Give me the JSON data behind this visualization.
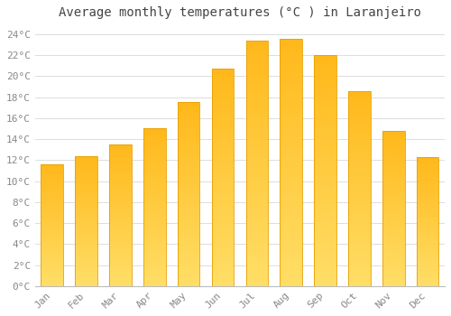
{
  "title": "Average monthly temperatures (°C ) in Laranjeiro",
  "months": [
    "Jan",
    "Feb",
    "Mar",
    "Apr",
    "May",
    "Jun",
    "Jul",
    "Aug",
    "Sep",
    "Oct",
    "Nov",
    "Dec"
  ],
  "values": [
    11.6,
    12.4,
    13.5,
    15.0,
    17.5,
    20.7,
    23.4,
    23.6,
    22.0,
    18.6,
    14.8,
    12.3
  ],
  "bar_color_top": "#FFC125",
  "bar_color_bottom": "#FFD966",
  "bar_edge_color": "#E8A000",
  "background_color": "#FFFFFF",
  "plot_background": "#FFFFFF",
  "grid_color": "#DDDDDD",
  "ylim": [
    0,
    25
  ],
  "ytick_step": 2,
  "title_fontsize": 10,
  "tick_fontsize": 8,
  "tick_color": "#888888",
  "title_color": "#444444"
}
